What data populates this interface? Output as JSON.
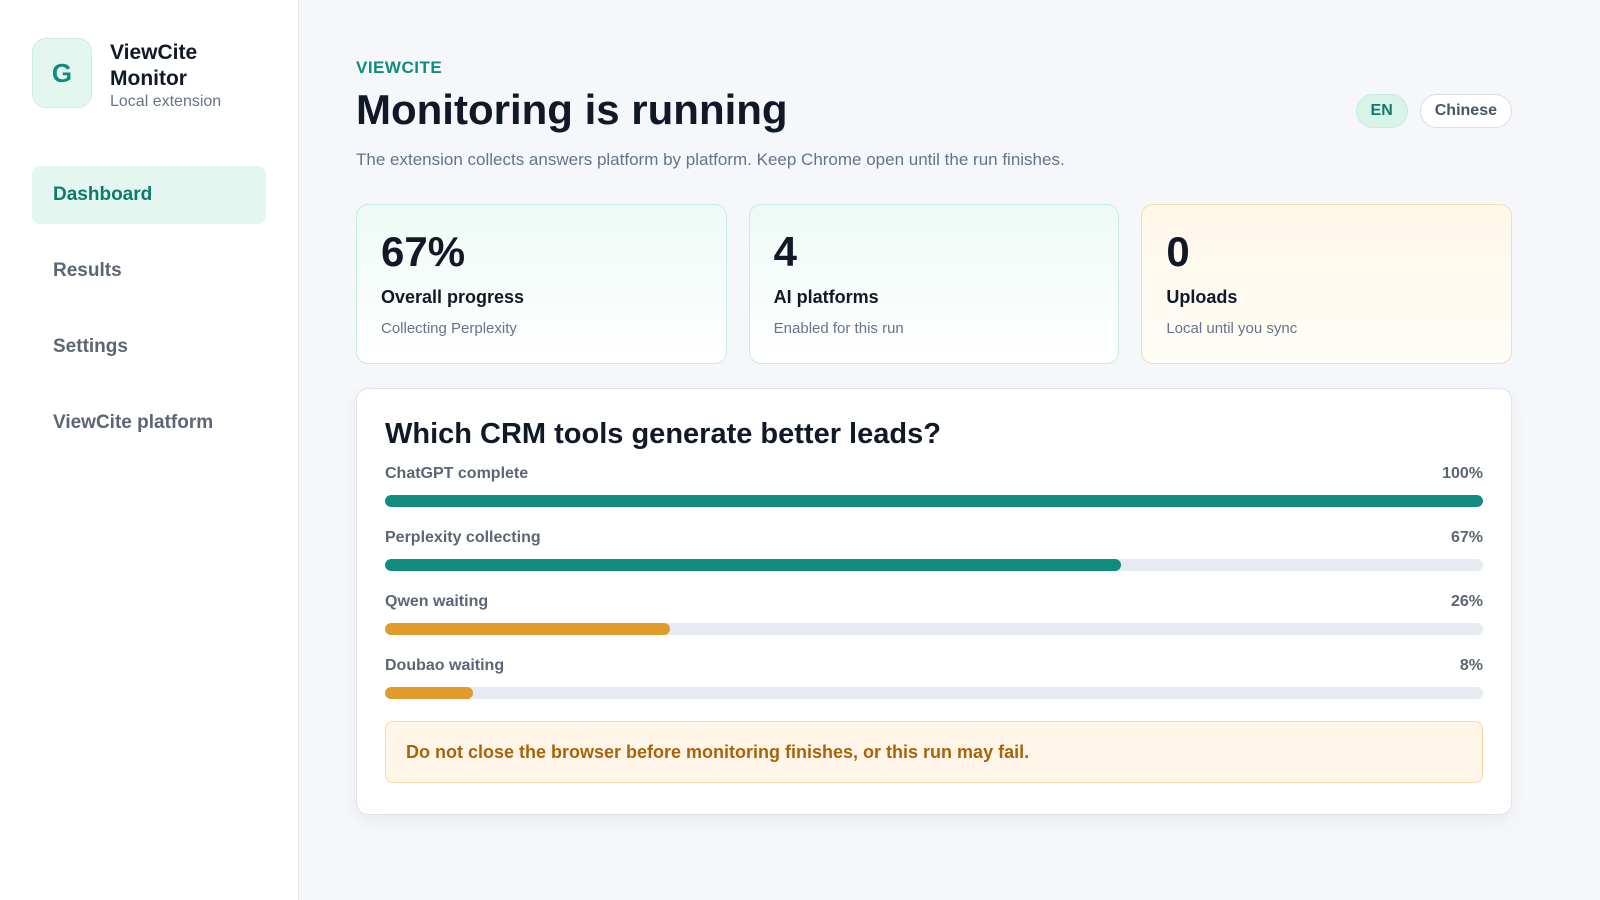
{
  "sidebar": {
    "logo_letter": "G",
    "title": "ViewCite Monitor",
    "subtitle": "Local extension",
    "items": [
      {
        "label": "Dashboard",
        "active": true
      },
      {
        "label": "Results",
        "active": false
      },
      {
        "label": "Settings",
        "active": false
      },
      {
        "label": "ViewCite platform",
        "active": false
      }
    ]
  },
  "header": {
    "eyebrow": "VIEWCITE",
    "title": "Monitoring is running",
    "subtitle": "The extension collects answers platform by platform. Keep Chrome open until the run finishes.",
    "languages": [
      {
        "label": "EN",
        "active": true
      },
      {
        "label": "Chinese",
        "active": false
      }
    ]
  },
  "stats": [
    {
      "value": "67%",
      "label": "Overall progress",
      "sub": "Collecting Perplexity"
    },
    {
      "value": "4",
      "label": "AI platforms",
      "sub": "Enabled for this run"
    },
    {
      "value": "0",
      "label": "Uploads",
      "sub": "Local until you sync"
    }
  ],
  "panel": {
    "title": "Which CRM tools generate better leads?",
    "rows": [
      {
        "label": "ChatGPT complete",
        "pct_label": "100%",
        "progress": 100,
        "color": "#0f8c7e"
      },
      {
        "label": "Perplexity collecting",
        "pct_label": "67%",
        "progress": 67,
        "color": "#0f8c7e"
      },
      {
        "label": "Qwen waiting",
        "pct_label": "26%",
        "progress": 26,
        "color": "#e09b2a"
      },
      {
        "label": "Doubao waiting",
        "pct_label": "8%",
        "progress": 8,
        "color": "#e09b2a"
      }
    ],
    "warning": "Do not close the browser before monitoring finishes, or this run may fail."
  },
  "colors": {
    "accent": "#0f8c7e",
    "waiting": "#e09b2a",
    "warning_text": "#a76409"
  }
}
